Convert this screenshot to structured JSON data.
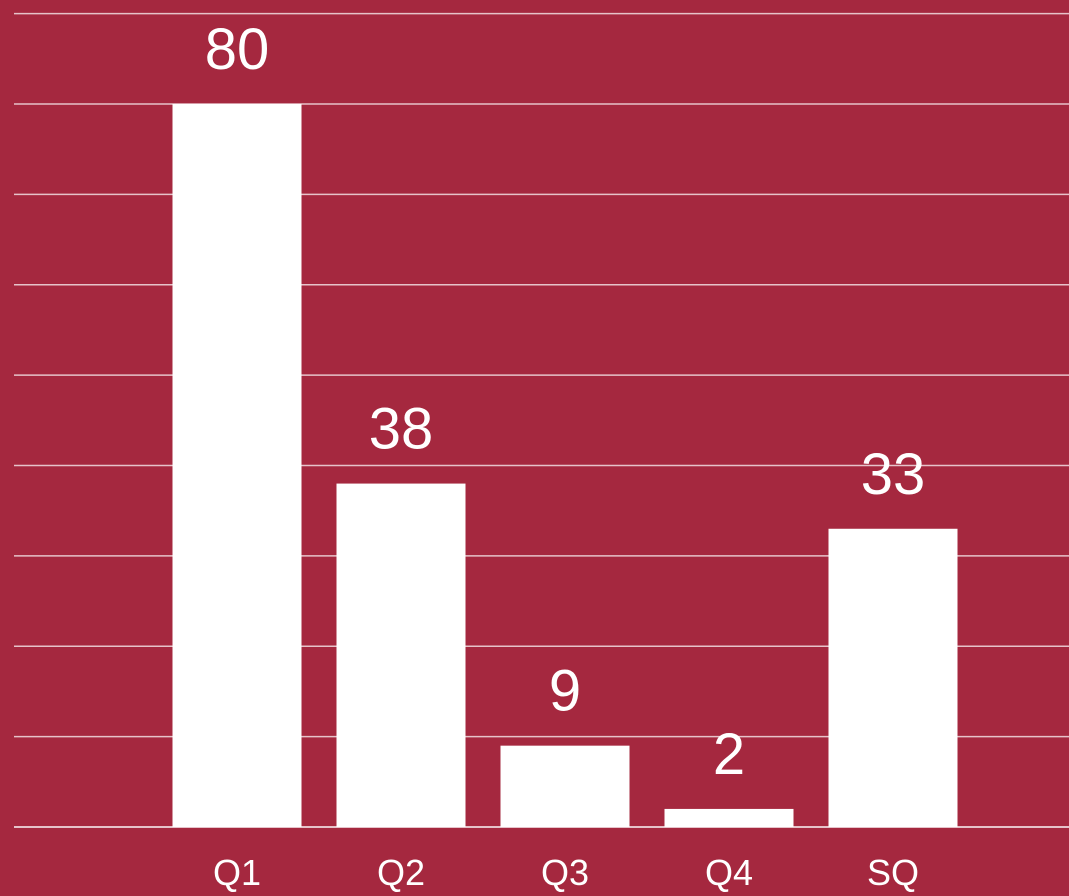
{
  "colors": {
    "background": "#a5283f",
    "bar": "#ffffff",
    "gridline": "#e6c3ca",
    "text": "#ffffff"
  },
  "chart_data": {
    "type": "bar",
    "categories": [
      "Q1",
      "Q2",
      "Q3",
      "Q4",
      "SQ"
    ],
    "values": [
      80,
      38,
      9,
      2,
      33
    ],
    "data_labels": [
      "80",
      "38",
      "9",
      "2",
      "33"
    ],
    "title": "",
    "xlabel": "",
    "ylabel": "",
    "ylim": [
      0,
      90
    ],
    "grid": true,
    "grid_step": 10,
    "legend": "none"
  }
}
